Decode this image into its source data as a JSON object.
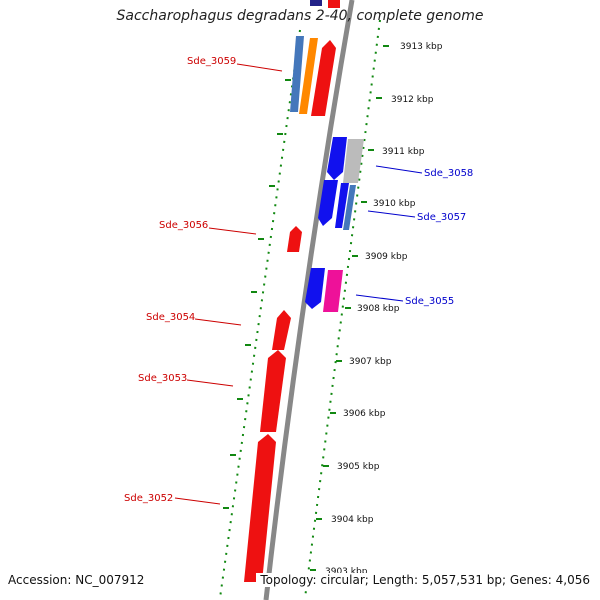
{
  "title": "Saccharophagus degradans 2-40, complete genome",
  "footer": {
    "accession": "Accession: NC_007912",
    "summary": "Topology: circular; Length: 5,057,531 bp; Genes: 4,056"
  },
  "ticks": [
    {
      "kbp": 3913,
      "label": "3913 kbp"
    },
    {
      "kbp": 3912,
      "label": "3912 kbp"
    },
    {
      "kbp": 3911,
      "label": "3911 kbp"
    },
    {
      "kbp": 3910,
      "label": "3910 kbp"
    },
    {
      "kbp": 3909,
      "label": "3909 kbp"
    },
    {
      "kbp": 3908,
      "label": "3908 kbp"
    },
    {
      "kbp": 3907,
      "label": "3907 kbp"
    },
    {
      "kbp": 3906,
      "label": "3906 kbp"
    },
    {
      "kbp": 3905,
      "label": "3905 kbp"
    },
    {
      "kbp": 3904,
      "label": "3904 kbp"
    },
    {
      "kbp": 3903,
      "label": "3903 kbp"
    }
  ],
  "gene_labels": [
    {
      "name": "Sde_3059",
      "strand": "reverse",
      "color": "#cc0000"
    },
    {
      "name": "Sde_3058",
      "strand": "forward",
      "color": "#0000cc"
    },
    {
      "name": "Sde_3057",
      "strand": "forward",
      "color": "#0000cc"
    },
    {
      "name": "Sde_3056",
      "strand": "reverse",
      "color": "#cc0000"
    },
    {
      "name": "Sde_3055",
      "strand": "forward",
      "color": "#0000cc"
    },
    {
      "name": "Sde_3054",
      "strand": "reverse",
      "color": "#cc0000"
    },
    {
      "name": "Sde_3053",
      "strand": "reverse",
      "color": "#cc0000"
    },
    {
      "name": "Sde_3052",
      "strand": "reverse",
      "color": "#cc0000"
    }
  ],
  "colors": {
    "red_gene": "#ee1111",
    "blue_gene": "#1111ee",
    "gray_gene": "#bbbbbb",
    "steel_gene": "#4477bb",
    "orange_gene": "#ff8800",
    "magenta_gene": "#ee1199",
    "backbone": "#888888",
    "dotted_track": "#118811",
    "navy_gene": "#222288"
  }
}
